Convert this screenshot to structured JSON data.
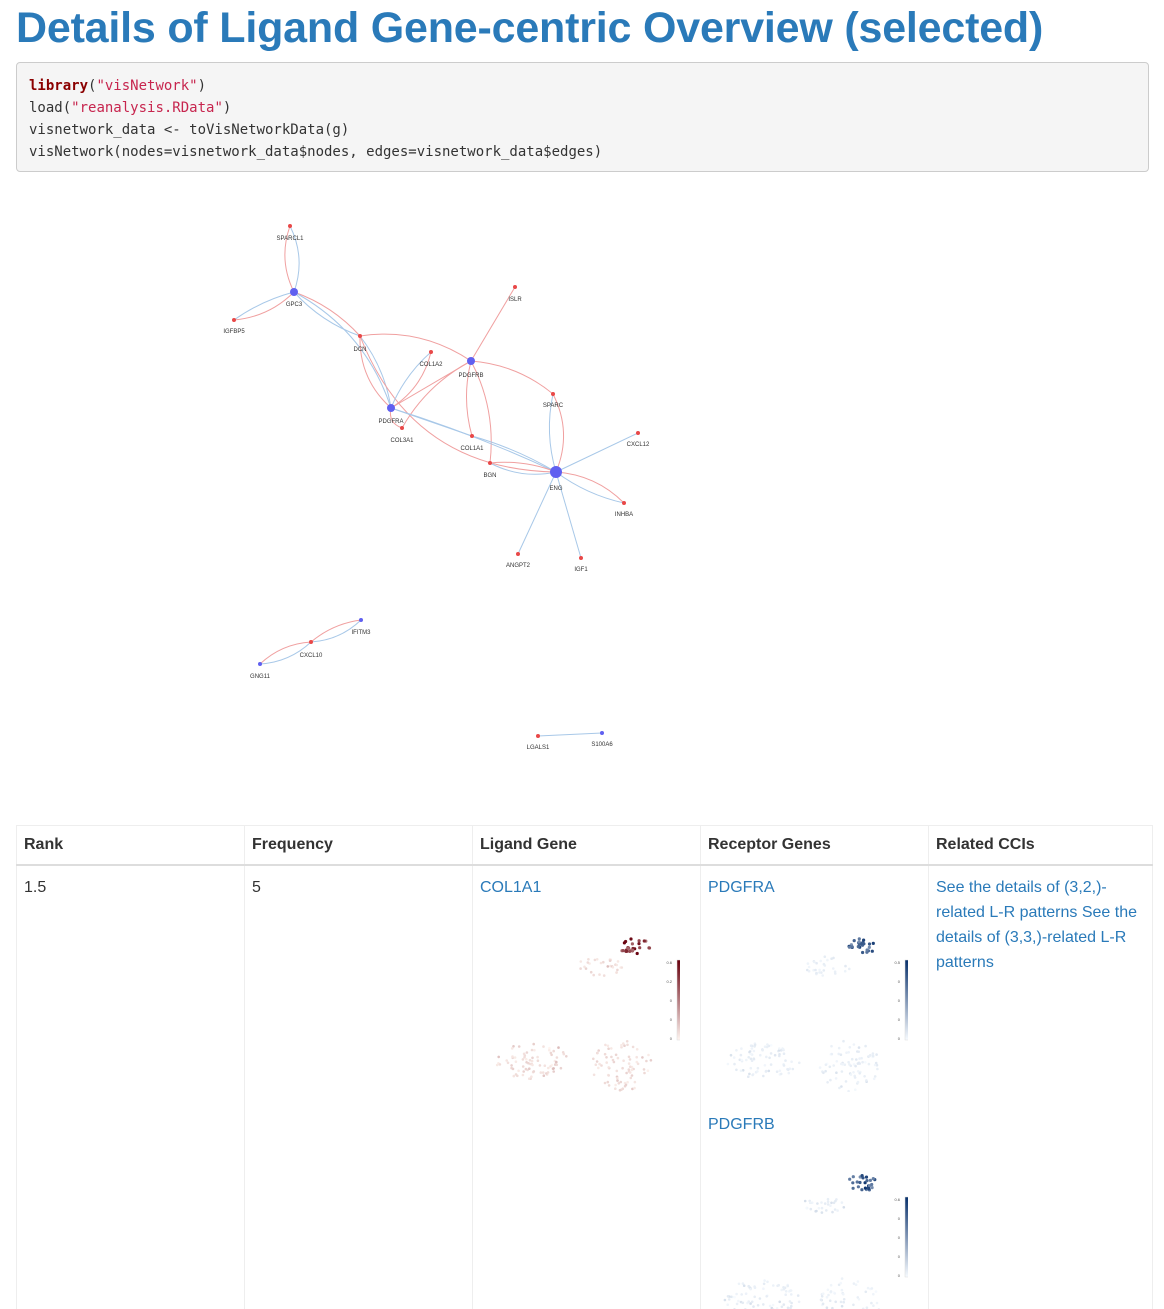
{
  "heading": "Details of Ligand Gene-centric Overview (selected)",
  "code": {
    "line1": {
      "fn": "library",
      "open": "(",
      "arg": "\"visNetwork\"",
      "close": ")"
    },
    "line2": {
      "fn": "load(",
      "arg": "\"reanalysis.RData\"",
      "close": ")"
    },
    "line3": "visnetwork_data <- toVisNetworkData(g)",
    "line4": "visNetwork(nodes=visnetwork_data$nodes, edges=visnetwork_data$edges)"
  },
  "network": {
    "colors": {
      "ligand_edge": "#f0a0a0",
      "receptor_edge": "#a8c8e8",
      "ligand_node": "#e84848",
      "receptor_node": "#6060f0"
    },
    "nodes": [
      {
        "id": "SPARCL1",
        "label": "SPARCL1",
        "type": "ligand",
        "size": "small"
      },
      {
        "id": "GPC3",
        "label": "GPC3",
        "type": "receptor",
        "size": "medium"
      },
      {
        "id": "IGFBP5",
        "label": "IGFBP5",
        "type": "ligand",
        "size": "small"
      },
      {
        "id": "ISLR",
        "label": "ISLR",
        "type": "ligand",
        "size": "small"
      },
      {
        "id": "DCN",
        "label": "DCN",
        "type": "ligand",
        "size": "small"
      },
      {
        "id": "COL1A2",
        "label": "COL1A2",
        "type": "ligand",
        "size": "small"
      },
      {
        "id": "PDGFRB",
        "label": "PDGFRB",
        "type": "receptor",
        "size": "medium"
      },
      {
        "id": "SPARC",
        "label": "SPARC",
        "type": "ligand",
        "size": "small"
      },
      {
        "id": "PDGFRA",
        "label": "PDGFRA",
        "type": "receptor",
        "size": "medium"
      },
      {
        "id": "COL3A1",
        "label": "COL3A1",
        "type": "ligand",
        "size": "small"
      },
      {
        "id": "COL1A1",
        "label": "COL1A1",
        "type": "ligand",
        "size": "small"
      },
      {
        "id": "CXCL12",
        "label": "CXCL12",
        "type": "ligand",
        "size": "small"
      },
      {
        "id": "BGN",
        "label": "BGN",
        "type": "ligand",
        "size": "small"
      },
      {
        "id": "ENG",
        "label": "ENG",
        "type": "receptor",
        "size": "large"
      },
      {
        "id": "INHBA",
        "label": "INHBA",
        "type": "ligand",
        "size": "small"
      },
      {
        "id": "ANGPT2",
        "label": "ANGPT2",
        "type": "ligand",
        "size": "small"
      },
      {
        "id": "IGF1",
        "label": "IGF1",
        "type": "ligand",
        "size": "small"
      },
      {
        "id": "IFITM3",
        "label": "IFITM3",
        "type": "receptor",
        "size": "small"
      },
      {
        "id": "CXCL10",
        "label": "CXCL10",
        "type": "ligand",
        "size": "small"
      },
      {
        "id": "GNG11",
        "label": "GNG11",
        "type": "receptor",
        "size": "small"
      },
      {
        "id": "LGALS1",
        "label": "LGALS1",
        "type": "ligand",
        "size": "small"
      },
      {
        "id": "S100A6",
        "label": "S100A6",
        "type": "receptor",
        "size": "small"
      }
    ],
    "edges": [
      {
        "from": "SPARCL1",
        "to": "GPC3",
        "kind": "ligand",
        "bend": 14
      },
      {
        "from": "SPARCL1",
        "to": "GPC3",
        "kind": "receptor",
        "bend": -14
      },
      {
        "from": "IGFBP5",
        "to": "GPC3",
        "kind": "ligand",
        "bend": 12
      },
      {
        "from": "IGFBP5",
        "to": "GPC3",
        "kind": "receptor",
        "bend": -6
      },
      {
        "from": "GPC3",
        "to": "DCN",
        "kind": "ligand",
        "bend": -10
      },
      {
        "from": "GPC3",
        "to": "DCN",
        "kind": "receptor",
        "bend": 10
      },
      {
        "from": "GPC3",
        "to": "PDGFRA",
        "kind": "receptor",
        "bend": -30
      },
      {
        "from": "DCN",
        "to": "PDGFRB",
        "kind": "ligand",
        "bend": -22
      },
      {
        "from": "DCN",
        "to": "PDGFRA",
        "kind": "ligand",
        "bend": 18
      },
      {
        "from": "DCN",
        "to": "PDGFRA",
        "kind": "receptor",
        "bend": -10
      },
      {
        "from": "DCN",
        "to": "ENG",
        "kind": "ligand",
        "bend": 80
      },
      {
        "from": "COL1A2",
        "to": "PDGFRA",
        "kind": "receptor",
        "bend": 8
      },
      {
        "from": "COL1A2",
        "to": "PDGFRA",
        "kind": "ligand",
        "bend": -14
      },
      {
        "from": "ISLR",
        "to": "PDGFRB",
        "kind": "ligand",
        "bend": 0
      },
      {
        "from": "PDGFRB",
        "to": "SPARC",
        "kind": "ligand",
        "bend": -14
      },
      {
        "from": "PDGFRB",
        "to": "COL1A1",
        "kind": "ligand",
        "bend": 10
      },
      {
        "from": "PDGFRB",
        "to": "BGN",
        "kind": "ligand",
        "bend": -16
      },
      {
        "from": "PDGFRB",
        "to": "COL3A1",
        "kind": "ligand",
        "bend": 14
      },
      {
        "from": "PDGFRB",
        "to": "PDGFRA",
        "kind": "ligand",
        "bend": 0
      },
      {
        "from": "PDGFRA",
        "to": "COL3A1",
        "kind": "ligand",
        "bend": 10
      },
      {
        "from": "PDGFRA",
        "to": "COL1A1",
        "kind": "receptor",
        "bend": 0
      },
      {
        "from": "PDGFRA",
        "to": "ENG",
        "kind": "receptor",
        "bend": -6
      },
      {
        "from": "COL1A1",
        "to": "ENG",
        "kind": "receptor",
        "bend": -6
      },
      {
        "from": "SPARC",
        "to": "ENG",
        "kind": "ligand",
        "bend": -18
      },
      {
        "from": "SPARC",
        "to": "ENG",
        "kind": "receptor",
        "bend": 10
      },
      {
        "from": "CXCL12",
        "to": "ENG",
        "kind": "receptor",
        "bend": 0
      },
      {
        "from": "BGN",
        "to": "ENG",
        "kind": "ligand",
        "bend": -8
      },
      {
        "from": "BGN",
        "to": "ENG",
        "kind": "receptor",
        "bend": 12
      },
      {
        "from": "ENG",
        "to": "INHBA",
        "kind": "ligand",
        "bend": -14
      },
      {
        "from": "ENG",
        "to": "INHBA",
        "kind": "receptor",
        "bend": 8
      },
      {
        "from": "ENG",
        "to": "ANGPT2",
        "kind": "receptor",
        "bend": 0
      },
      {
        "from": "ENG",
        "to": "IGF1",
        "kind": "receptor",
        "bend": 0
      },
      {
        "from": "GNG11",
        "to": "CXCL10",
        "kind": "ligand",
        "bend": -10
      },
      {
        "from": "GNG11",
        "to": "CXCL10",
        "kind": "receptor",
        "bend": 10
      },
      {
        "from": "CXCL10",
        "to": "IFITM3",
        "kind": "ligand",
        "bend": -8
      },
      {
        "from": "CXCL10",
        "to": "IFITM3",
        "kind": "receptor",
        "bend": 10
      },
      {
        "from": "LGALS1",
        "to": "S100A6",
        "kind": "receptor",
        "bend": 0
      }
    ]
  },
  "table": {
    "headers": [
      "Rank",
      "Frequency",
      "Ligand Gene",
      "Receptor Genes",
      "Related CCIs"
    ],
    "row": {
      "rank": "1.5",
      "frequency": "5",
      "ligand": "COL1A1",
      "receptors": [
        "PDGFRA",
        "PDGFRB"
      ],
      "ccis": "See the details of (3,2,)-related L-R patterns See the details of (3,3,)-related L-R patterns"
    },
    "plots": [
      {
        "title": "COL1A1",
        "palette": "reds",
        "ticks": [
          "0.6",
          "0.2",
          "0",
          "0",
          "0"
        ],
        "low": "#fff5f0",
        "high": "#67000d"
      },
      {
        "title": "PDGFRA",
        "palette": "blues",
        "ticks": [
          "0.5",
          "0",
          "0",
          "0",
          "0"
        ],
        "low": "#f7fbff",
        "high": "#08306b"
      },
      {
        "title": "PDGFRB",
        "palette": "blues",
        "ticks": [
          "0.6",
          "0",
          "0",
          "0",
          "0"
        ],
        "low": "#f7fbff",
        "high": "#08306b"
      }
    ]
  }
}
